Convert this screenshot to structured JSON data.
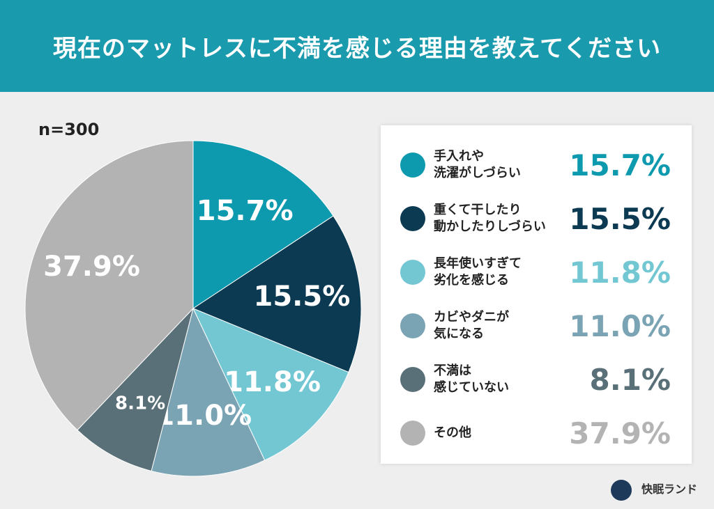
{
  "chart_data": {
    "type": "pie",
    "title": "現在のマットレスに不満を感じる理由を教えてください",
    "note": "n=300",
    "categories": [
      "手入れや\n洗濯がしづらい",
      "重くて干したり\n動かしたりしづらい",
      "長年使いすぎて\n劣化を感じる",
      "カビやダニが\n気になる",
      "不満は\n感じていない",
      "その他"
    ],
    "values": [
      15.7,
      15.5,
      11.8,
      11.0,
      8.1,
      37.9
    ],
    "value_labels": [
      "15.7%",
      "15.5%",
      "11.8%",
      "11.0%",
      "8.1%",
      "37.9%"
    ],
    "colors": [
      "#0e9aae",
      "#0b3a52",
      "#72c7d3",
      "#7aa3b3",
      "#5a7078",
      "#b3b3b3"
    ]
  },
  "brand": "快眠ランド"
}
